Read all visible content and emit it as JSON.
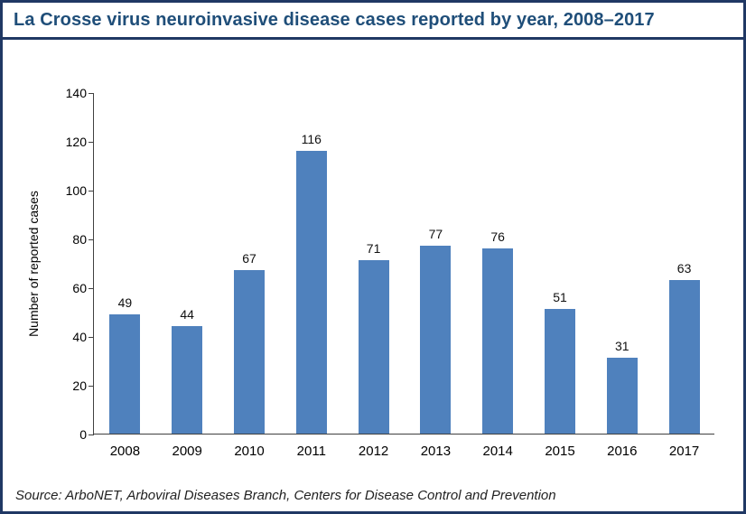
{
  "header": {
    "title": "La Crosse virus neuroinvasive disease cases reported by year, 2008–2017"
  },
  "chart_data": {
    "type": "bar",
    "title": "La Crosse virus neuroinvasive disease cases reported by year, 2008–2017",
    "categories": [
      "2008",
      "2009",
      "2010",
      "2011",
      "2012",
      "2013",
      "2014",
      "2015",
      "2016",
      "2017"
    ],
    "values": [
      49,
      44,
      67,
      116,
      71,
      77,
      76,
      51,
      31,
      63
    ],
    "xlabel": "",
    "ylabel": "Number of reported cases",
    "ylim": [
      0,
      140
    ],
    "ytick_step": 20,
    "grid": false,
    "data_labels": true,
    "legend": "none",
    "bar_color": "#4F81BD"
  },
  "source": {
    "text": "Source: ArboNET, Arboviral Diseases Branch, Centers for Disease Control and Prevention"
  },
  "colors": {
    "border": "#203864",
    "title_text": "#1F4E79",
    "bar": "#4F81BD",
    "axis": "#404040"
  }
}
